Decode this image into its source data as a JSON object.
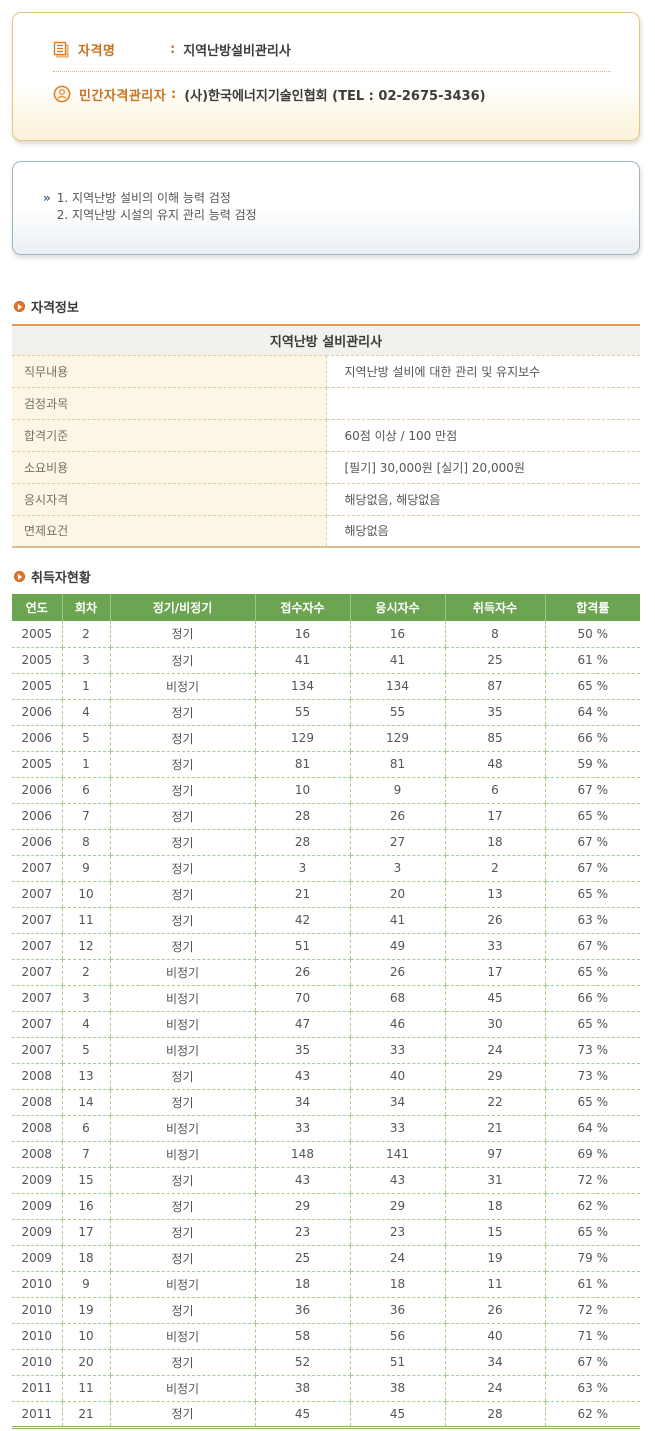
{
  "qualification_card": {
    "name_label": "자격명",
    "name_colon": ":",
    "name_value": "지역난방설비관리사",
    "manager_label": "민간자격관리자",
    "manager_colon": ":",
    "manager_value": "(사)한국에너지기술인협회 (TEL : 02-2675-3436)"
  },
  "overview_card": {
    "marker": "»",
    "lines": [
      "1. 지역난방 설비의 이해 능력 검정",
      "2. 지역난방 시설의 유지 관리 능력 검정"
    ]
  },
  "info_section": {
    "title": "자격정보",
    "table_title": "지역난방 설비관리사",
    "rows": [
      {
        "label": "직무내용",
        "value": "지역난방 설비에 대한 관리 및 유지보수"
      },
      {
        "label": "검정과목",
        "value": ""
      },
      {
        "label": "합격기준",
        "value": "60점 이상 / 100 만점"
      },
      {
        "label": "소요비용",
        "value": "[필기] 30,000원 [실기] 20,000원"
      },
      {
        "label": "응시자격",
        "value": "해당없음, 해당없음"
      },
      {
        "label": "면제요건",
        "value": "해당없음"
      }
    ]
  },
  "stats_section": {
    "title": "취득자현황",
    "columns": [
      "연도",
      "회차",
      "정기/비정기",
      "접수자수",
      "응시자수",
      "취득자수",
      "합격률"
    ],
    "rows": [
      [
        "2005",
        "2",
        "정기",
        "16",
        "16",
        "8",
        "50 %"
      ],
      [
        "2005",
        "3",
        "정기",
        "41",
        "41",
        "25",
        "61 %"
      ],
      [
        "2005",
        "1",
        "비정기",
        "134",
        "134",
        "87",
        "65 %"
      ],
      [
        "2006",
        "4",
        "정기",
        "55",
        "55",
        "35",
        "64 %"
      ],
      [
        "2006",
        "5",
        "정기",
        "129",
        "129",
        "85",
        "66 %"
      ],
      [
        "2005",
        "1",
        "정기",
        "81",
        "81",
        "48",
        "59 %"
      ],
      [
        "2006",
        "6",
        "정기",
        "10",
        "9",
        "6",
        "67 %"
      ],
      [
        "2006",
        "7",
        "정기",
        "28",
        "26",
        "17",
        "65 %"
      ],
      [
        "2006",
        "8",
        "정기",
        "28",
        "27",
        "18",
        "67 %"
      ],
      [
        "2007",
        "9",
        "정기",
        "3",
        "3",
        "2",
        "67 %"
      ],
      [
        "2007",
        "10",
        "정기",
        "21",
        "20",
        "13",
        "65 %"
      ],
      [
        "2007",
        "11",
        "정기",
        "42",
        "41",
        "26",
        "63 %"
      ],
      [
        "2007",
        "12",
        "정기",
        "51",
        "49",
        "33",
        "67 %"
      ],
      [
        "2007",
        "2",
        "비정기",
        "26",
        "26",
        "17",
        "65 %"
      ],
      [
        "2007",
        "3",
        "비정기",
        "70",
        "68",
        "45",
        "66 %"
      ],
      [
        "2007",
        "4",
        "비정기",
        "47",
        "46",
        "30",
        "65 %"
      ],
      [
        "2007",
        "5",
        "비정기",
        "35",
        "33",
        "24",
        "73 %"
      ],
      [
        "2008",
        "13",
        "정기",
        "43",
        "40",
        "29",
        "73 %"
      ],
      [
        "2008",
        "14",
        "정기",
        "34",
        "34",
        "22",
        "65 %"
      ],
      [
        "2008",
        "6",
        "비정기",
        "33",
        "33",
        "21",
        "64 %"
      ],
      [
        "2008",
        "7",
        "비정기",
        "148",
        "141",
        "97",
        "69 %"
      ],
      [
        "2009",
        "15",
        "정기",
        "43",
        "43",
        "31",
        "72 %"
      ],
      [
        "2009",
        "16",
        "정기",
        "29",
        "29",
        "18",
        "62 %"
      ],
      [
        "2009",
        "17",
        "정기",
        "23",
        "23",
        "15",
        "65 %"
      ],
      [
        "2009",
        "18",
        "정기",
        "25",
        "24",
        "19",
        "79 %"
      ],
      [
        "2010",
        "9",
        "비정기",
        "18",
        "18",
        "11",
        "61 %"
      ],
      [
        "2010",
        "19",
        "정기",
        "36",
        "36",
        "26",
        "72 %"
      ],
      [
        "2010",
        "10",
        "비정기",
        "58",
        "56",
        "40",
        "71 %"
      ],
      [
        "2010",
        "20",
        "정기",
        "52",
        "51",
        "34",
        "67 %"
      ],
      [
        "2011",
        "11",
        "비정기",
        "38",
        "38",
        "24",
        "63 %"
      ],
      [
        "2011",
        "21",
        "정기",
        "45",
        "45",
        "28",
        "62 %"
      ]
    ]
  },
  "colors": {
    "accent_orange": "#C8731F",
    "card1_border": "#E5C77C",
    "card2_border": "#9DB5C3",
    "table1_top_border": "#DE9A50",
    "label_cell_bg": "#FCF7E5",
    "stats_header_bg": "#6CA551",
    "stats_dashed_border": "#A9CB8C"
  }
}
